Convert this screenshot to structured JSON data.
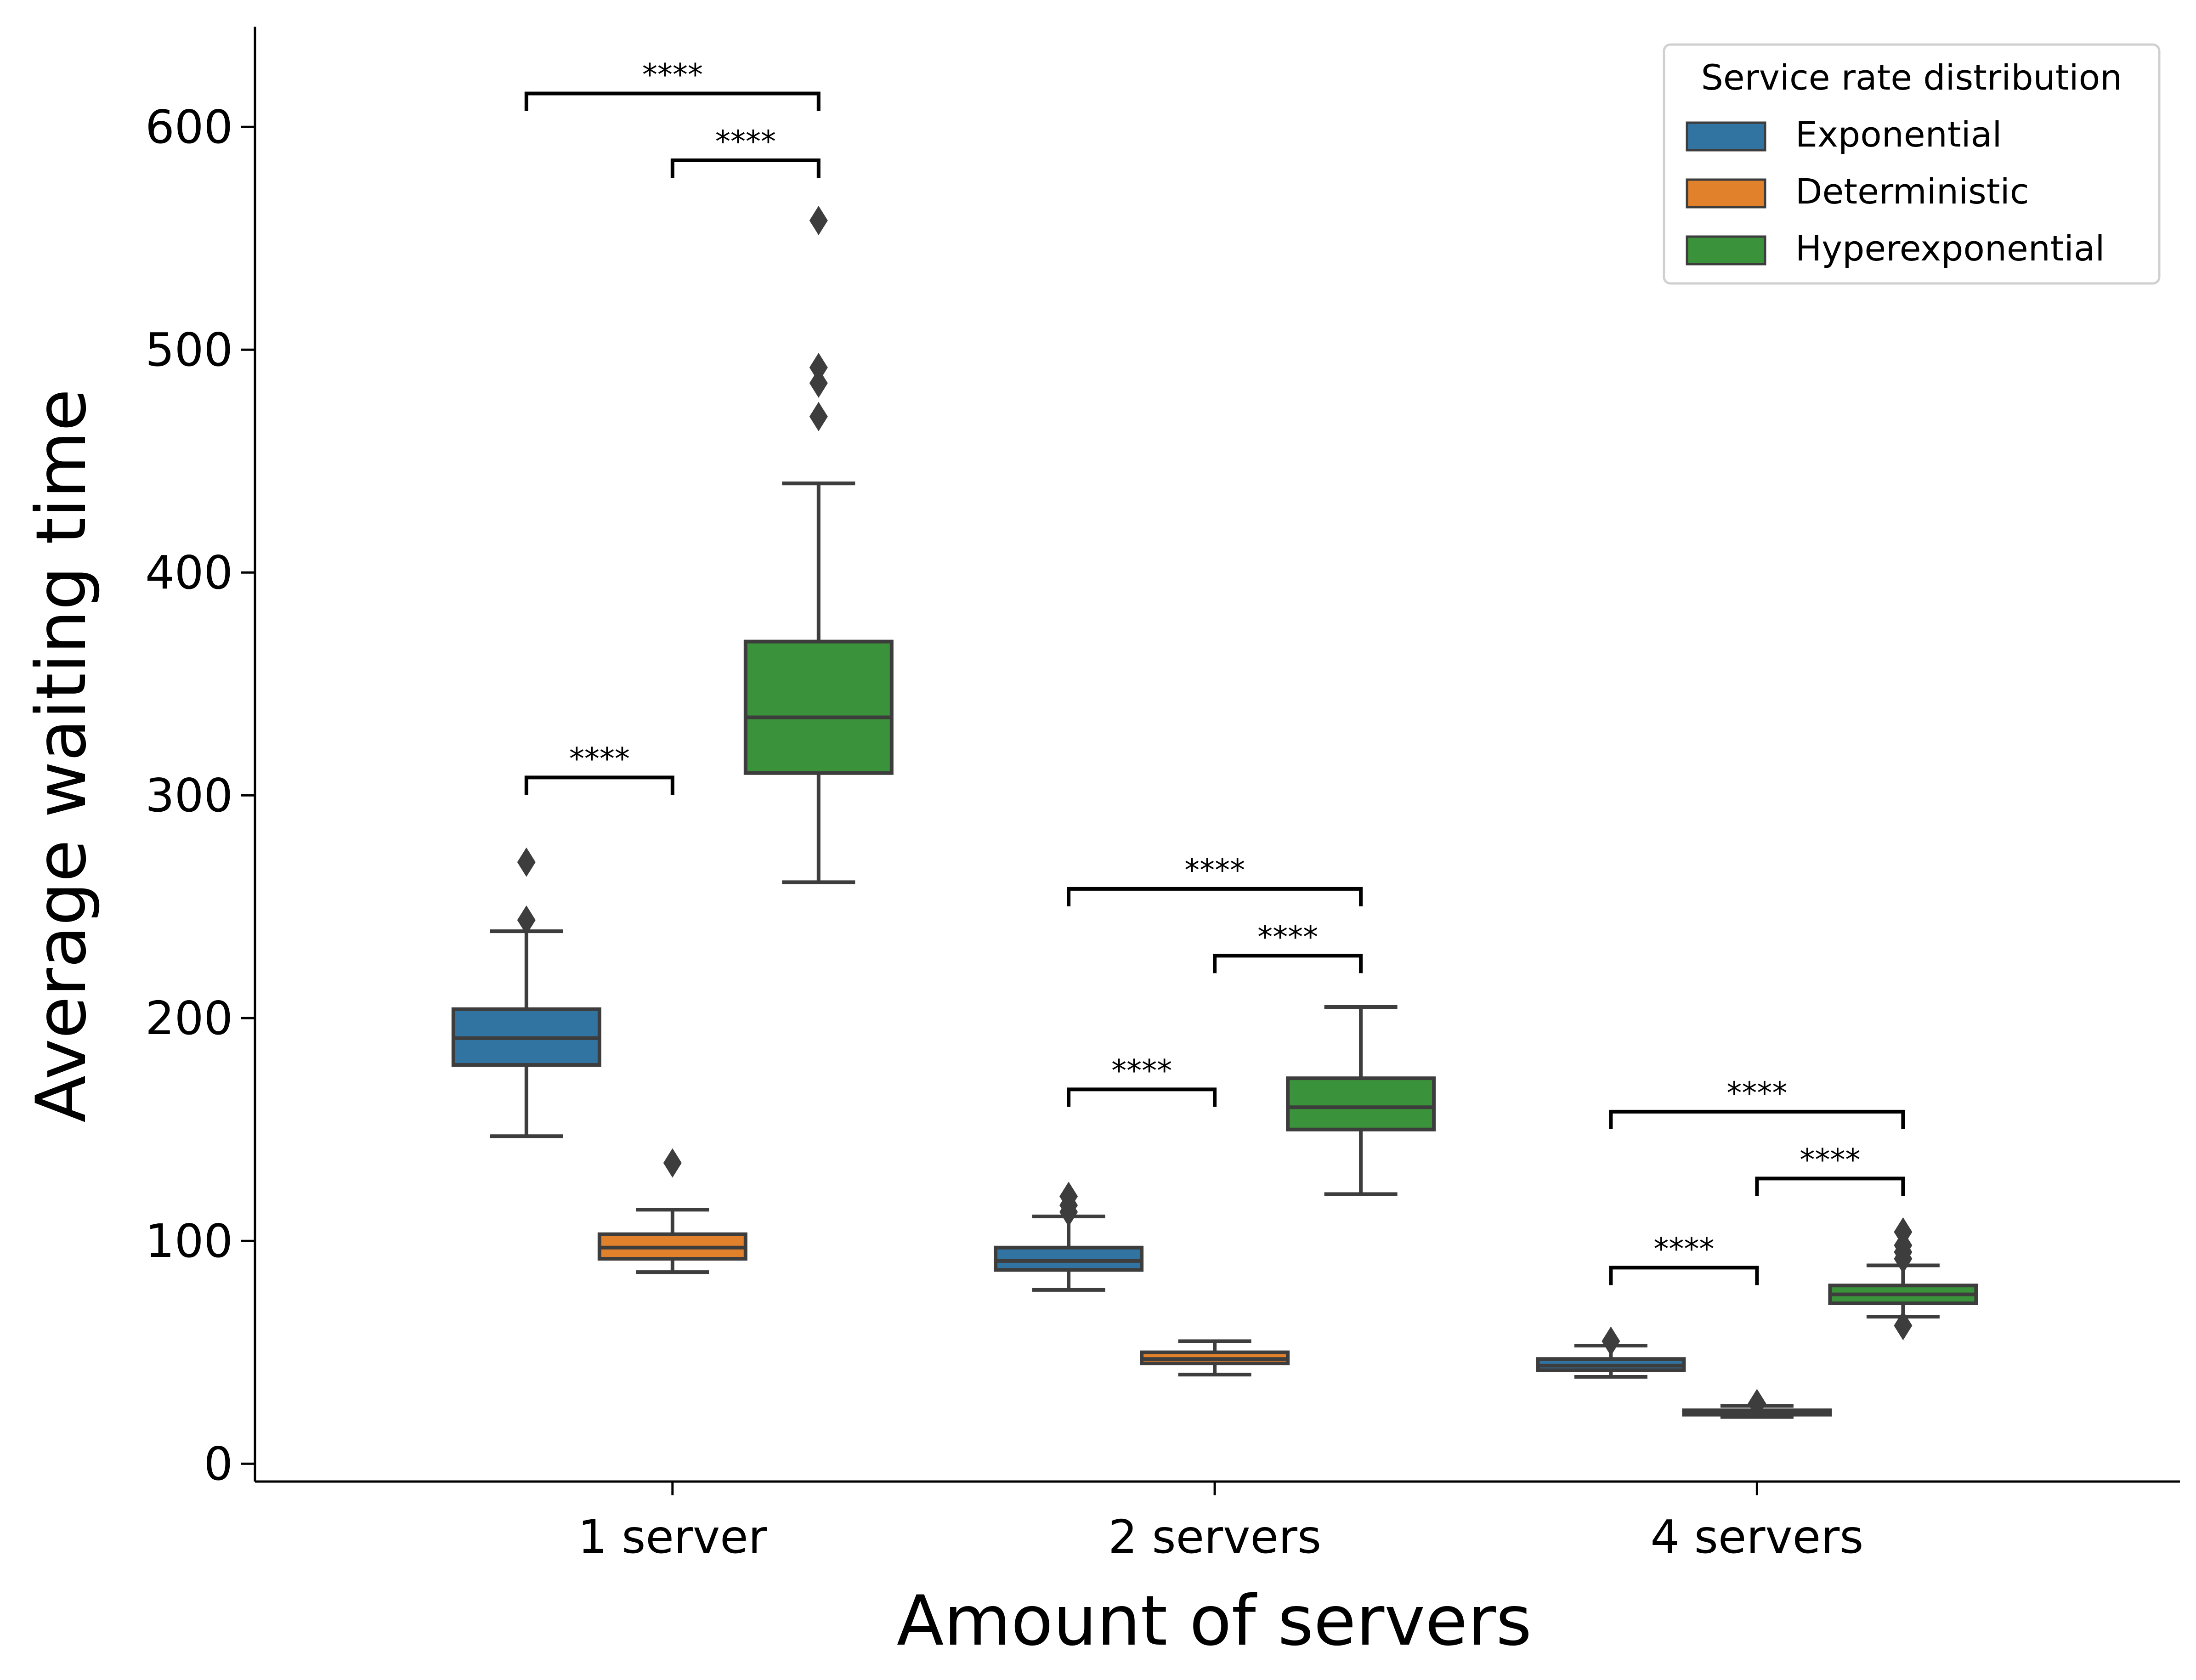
{
  "chart_data": {
    "type": "box",
    "xlabel": "Amount of servers",
    "ylabel": "Average waiting time",
    "ylim": [
      -8,
      645
    ],
    "yticks": [
      0,
      100,
      200,
      300,
      400,
      500,
      600
    ],
    "categories": [
      "1 server",
      "2 servers",
      "4 servers"
    ],
    "legend": {
      "title": "Service rate distribution",
      "placement": "top-right",
      "entries": [
        "Exponential",
        "Deterministic",
        "Hyperexponential"
      ]
    },
    "series": [
      {
        "name": "Exponential",
        "color": "#3274a1",
        "boxes": [
          {
            "category": "1 server",
            "whisker_low": 147,
            "q1": 179,
            "median": 191,
            "q3": 204,
            "whisker_high": 239,
            "outliers": [
              244,
              270
            ]
          },
          {
            "category": "2 servers",
            "whisker_low": 78,
            "q1": 87,
            "median": 91,
            "q3": 97,
            "whisker_high": 111,
            "outliers": [
              113,
              116,
              120
            ]
          },
          {
            "category": "4 servers",
            "whisker_low": 39,
            "q1": 42,
            "median": 44,
            "q3": 47,
            "whisker_high": 53,
            "outliers": [
              55
            ]
          }
        ]
      },
      {
        "name": "Deterministic",
        "color": "#e1812c",
        "boxes": [
          {
            "category": "1 server",
            "whisker_low": 86,
            "q1": 92,
            "median": 97,
            "q3": 103,
            "whisker_high": 114,
            "outliers": [
              135
            ]
          },
          {
            "category": "2 servers",
            "whisker_low": 40,
            "q1": 45,
            "median": 47,
            "q3": 50,
            "whisker_high": 55,
            "outliers": []
          },
          {
            "category": "4 servers",
            "whisker_low": 21,
            "q1": 22,
            "median": 23,
            "q3": 24,
            "whisker_high": 26,
            "outliers": [
              27
            ]
          }
        ]
      },
      {
        "name": "Hyperexponential",
        "color": "#3a923a",
        "boxes": [
          {
            "category": "1 server",
            "whisker_low": 261,
            "q1": 310,
            "median": 335,
            "q3": 369,
            "whisker_high": 440,
            "outliers": [
              470,
              485,
              492,
              558
            ]
          },
          {
            "category": "2 servers",
            "whisker_low": 121,
            "q1": 150,
            "median": 160,
            "q3": 173,
            "whisker_high": 205,
            "outliers": []
          },
          {
            "category": "4 servers",
            "whisker_low": 66,
            "q1": 72,
            "median": 76,
            "q3": 80,
            "whisker_high": 89,
            "outliers": [
              62,
              92,
              95,
              98,
              104
            ]
          }
        ]
      }
    ],
    "annotations": [
      {
        "category": "1 server",
        "from": "Exponential",
        "to": "Deterministic",
        "y": 308,
        "text": "****"
      },
      {
        "category": "1 server",
        "from": "Deterministic",
        "to": "Hyperexponential",
        "y": 585,
        "text": "****"
      },
      {
        "category": "1 server",
        "from": "Exponential",
        "to": "Hyperexponential",
        "y": 615,
        "text": "****"
      },
      {
        "category": "2 servers",
        "from": "Exponential",
        "to": "Deterministic",
        "y": 168,
        "text": "****"
      },
      {
        "category": "2 servers",
        "from": "Deterministic",
        "to": "Hyperexponential",
        "y": 228,
        "text": "****"
      },
      {
        "category": "2 servers",
        "from": "Exponential",
        "to": "Hyperexponential",
        "y": 258,
        "text": "****"
      },
      {
        "category": "4 servers",
        "from": "Exponential",
        "to": "Deterministic",
        "y": 88,
        "text": "****"
      },
      {
        "category": "4 servers",
        "from": "Deterministic",
        "to": "Hyperexponential",
        "y": 128,
        "text": "****"
      },
      {
        "category": "4 servers",
        "from": "Exponential",
        "to": "Hyperexponential",
        "y": 158,
        "text": "****"
      }
    ]
  }
}
